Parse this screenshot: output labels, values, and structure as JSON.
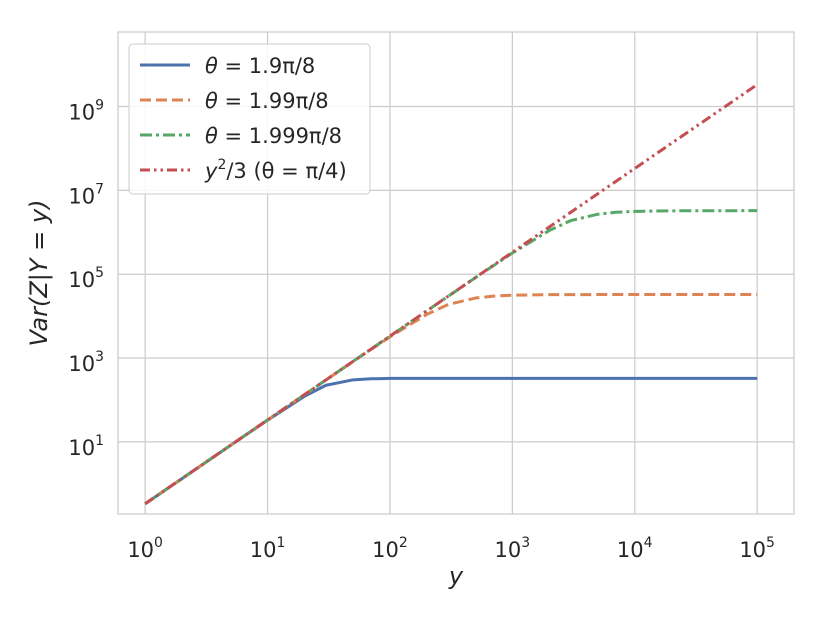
{
  "chart_data": {
    "type": "line",
    "xscale": "log",
    "yscale": "log",
    "xlim": [
      0.6,
      200000
    ],
    "ylim": [
      0.19,
      60000000000
    ],
    "xlabel": "y",
    "ylabel": "Var(Z|Y = y)",
    "grid": true,
    "legend_position": "top-left",
    "x_ticks": [
      {
        "base": "10",
        "exp": "0"
      },
      {
        "base": "10",
        "exp": "1"
      },
      {
        "base": "10",
        "exp": "2"
      },
      {
        "base": "10",
        "exp": "3"
      },
      {
        "base": "10",
        "exp": "4"
      },
      {
        "base": "10",
        "exp": "5"
      }
    ],
    "y_ticks": [
      {
        "base": "10",
        "exp": "1"
      },
      {
        "base": "10",
        "exp": "3"
      },
      {
        "base": "10",
        "exp": "5"
      },
      {
        "base": "10",
        "exp": "7"
      },
      {
        "base": "10",
        "exp": "9"
      }
    ],
    "x_tick_values": [
      1,
      10,
      100,
      1000,
      10000,
      100000
    ],
    "y_tick_values": [
      10,
      1000,
      100000,
      10000000,
      1000000000
    ],
    "series": [
      {
        "name": "θ = 1.9π/8",
        "color": "#4c72b0",
        "dash": "solid",
        "x": [
          1,
          2,
          5,
          10,
          20,
          30,
          50,
          70,
          100,
          200,
          500,
          1000,
          10000,
          100000
        ],
        "y": [
          0.333,
          1.33,
          8.3,
          32.9,
          122,
          224,
          302,
          320,
          326,
          328,
          328,
          328,
          328,
          328
        ]
      },
      {
        "name": "θ = 1.99π/8",
        "color": "#dd8452",
        "dash": "dashed",
        "x": [
          1,
          2,
          5,
          10,
          20,
          50,
          100,
          200,
          300,
          500,
          700,
          1000,
          2000,
          10000,
          100000
        ],
        "y": [
          0.333,
          1.33,
          8.33,
          33.3,
          133,
          830,
          3200,
          11000,
          19000,
          27000,
          30000,
          31500,
          32500,
          32800,
          32800
        ]
      },
      {
        "name": "θ = 1.999π/8",
        "color": "#55a868",
        "dash": "dashdot",
        "x": [
          1,
          10,
          100,
          500,
          1000,
          2000,
          3000,
          5000,
          7000,
          10000,
          20000,
          100000
        ],
        "y": [
          0.333,
          33.3,
          3330,
          83000,
          320000,
          1100000,
          1900000,
          2700000,
          3000000,
          3150000,
          3250000,
          3280000
        ]
      },
      {
        "name": "y²/3 (θ = π/4)",
        "color": "#c44e52",
        "dash": "dashdotdot",
        "x": [
          1,
          100000
        ],
        "y": [
          0.333,
          3333333333
        ]
      }
    ]
  },
  "legend": {
    "items": [
      {
        "pre": "θ",
        "post": " = 1.9π/8"
      },
      {
        "pre": "θ",
        "post": " = 1.99π/8"
      },
      {
        "pre": "θ",
        "post": " = 1.999π/8"
      },
      {
        "pre": "y",
        "sup": "2",
        "post": "/3 (θ = π/4)"
      }
    ]
  }
}
